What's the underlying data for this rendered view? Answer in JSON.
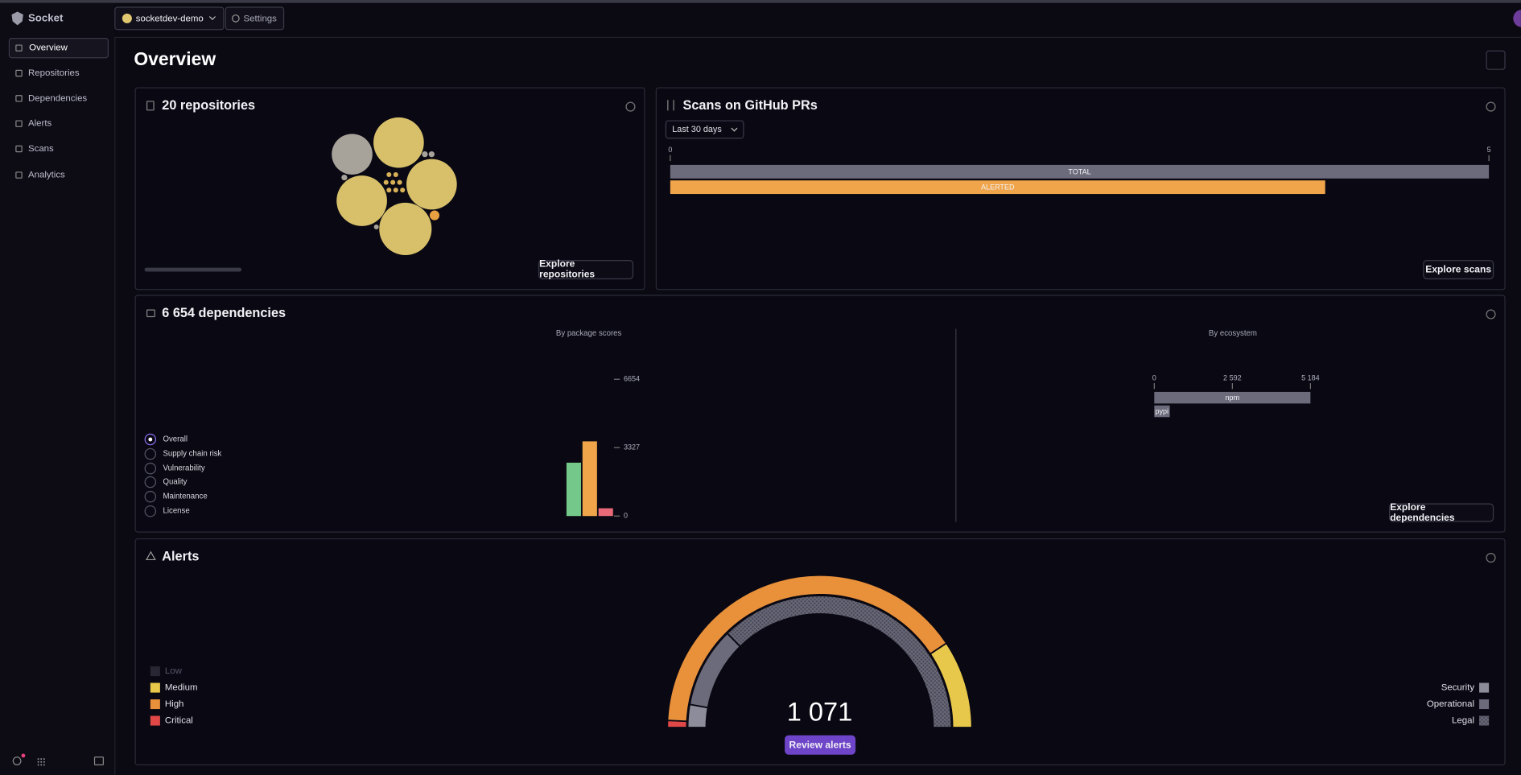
{
  "sidebar": {
    "brand": "Socket",
    "nav": [
      "Overview",
      "Repositories",
      "Dependencies",
      "Alerts",
      "Scans",
      "Analytics"
    ],
    "active": 0
  },
  "topbar": {
    "org": "socketdev-demo",
    "settings": "Settings"
  },
  "page": {
    "title": "Overview"
  },
  "repositories": {
    "title": "20 repositories",
    "button": "Explore repositories"
  },
  "scans": {
    "title": "Scans on GitHub PRs",
    "filter": "Last 30 days",
    "button": "Explore scans"
  },
  "dependencies": {
    "title": "6 654 dependencies",
    "button": "Explore dependencies",
    "options": [
      "Overall",
      "Supply chain risk",
      "Vulnerability",
      "Quality",
      "Maintenance",
      "License"
    ],
    "selected": 0
  },
  "alerts": {
    "title": "Alerts",
    "button": "Review alerts"
  },
  "chart_data": [
    {
      "type": "hbar",
      "categories": [
        "TOTAL",
        "ALERTED"
      ],
      "values": [
        5,
        4
      ],
      "colors": [
        "#6b6b7c",
        "#f0a54a"
      ],
      "xlim": [
        0,
        5
      ],
      "xticks": [
        0,
        5
      ]
    },
    {
      "type": "bar",
      "title": "By package scores",
      "categories": [
        null,
        null,
        null
      ],
      "values": [
        2596,
        3634,
        378
      ],
      "colors": [
        "#74c98a",
        "#f0a54a",
        "#e86a78"
      ],
      "ylim": [
        0,
        6654
      ],
      "yticks": [
        0,
        3327,
        6654
      ]
    },
    {
      "type": "hbar",
      "title": "By ecosystem",
      "categories": [
        "npm",
        "pypi"
      ],
      "values": [
        5184,
        515
      ],
      "colors": [
        "#6b6b7c",
        "#6b6b7c"
      ],
      "xlim": [
        0,
        5184
      ],
      "xticks": [
        0,
        {
          "value": 2592,
          "label": "2 592"
        },
        {
          "value": 5184,
          "label": "5 184"
        }
      ]
    },
    {
      "type": "gauge",
      "total": {
        "value": 1071,
        "label": "1 071"
      },
      "rings": [
        {
          "categories": [
            "Low",
            "Medium",
            "High",
            "Critical"
          ],
          "values": [
            0,
            200,
            855,
            16
          ],
          "colors": [
            "#3a3a48",
            "#e8c84a",
            "#e8903a",
            "#e04848"
          ],
          "legend": "left"
        },
        {
          "categories": [
            "Security",
            "Operational",
            "Legal"
          ],
          "values": [
            60,
            211,
            800
          ],
          "colors": [
            "#8c8c9a",
            "#6b6b7c",
            "#5a5a68"
          ],
          "hatched": [
            false,
            false,
            true
          ],
          "legend": "right"
        }
      ]
    }
  ]
}
